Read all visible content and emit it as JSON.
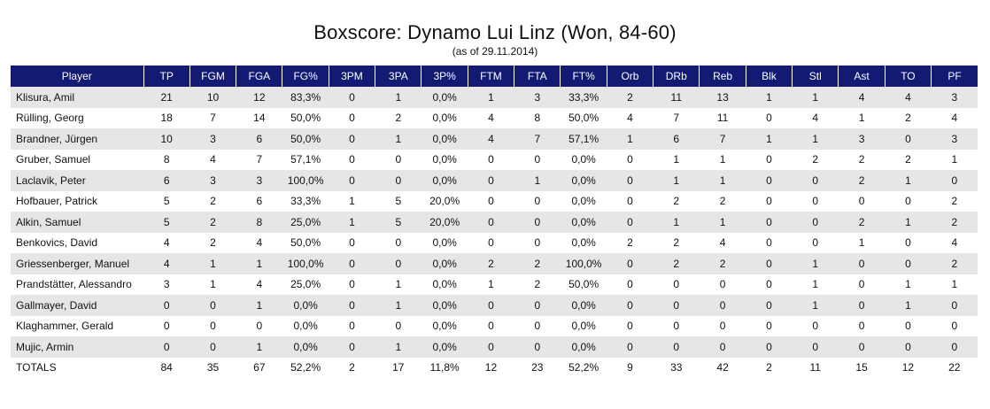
{
  "header": {
    "title": "Boxscore: Dynamo Lui Linz (Won, 84-60)",
    "subtitle": "(as of 29.11.2014)"
  },
  "table": {
    "columns": [
      "Player",
      "TP",
      "FGM",
      "FGA",
      "FG%",
      "3PM",
      "3PA",
      "3P%",
      "FTM",
      "FTA",
      "FT%",
      "Orb",
      "DRb",
      "Reb",
      "Blk",
      "Stl",
      "Ast",
      "TO",
      "PF"
    ],
    "rows": [
      [
        "Klisura, Amil",
        "21",
        "10",
        "12",
        "83,3%",
        "0",
        "1",
        "0,0%",
        "1",
        "3",
        "33,3%",
        "2",
        "11",
        "13",
        "1",
        "1",
        "4",
        "4",
        "3"
      ],
      [
        "Rülling, Georg",
        "18",
        "7",
        "14",
        "50,0%",
        "0",
        "2",
        "0,0%",
        "4",
        "8",
        "50,0%",
        "4",
        "7",
        "11",
        "0",
        "4",
        "1",
        "2",
        "4"
      ],
      [
        "Brandner, Jürgen",
        "10",
        "3",
        "6",
        "50,0%",
        "0",
        "1",
        "0,0%",
        "4",
        "7",
        "57,1%",
        "1",
        "6",
        "7",
        "1",
        "1",
        "3",
        "0",
        "3"
      ],
      [
        "Gruber, Samuel",
        "8",
        "4",
        "7",
        "57,1%",
        "0",
        "0",
        "0,0%",
        "0",
        "0",
        "0,0%",
        "0",
        "1",
        "1",
        "0",
        "2",
        "2",
        "2",
        "1"
      ],
      [
        "Laclavik, Peter",
        "6",
        "3",
        "3",
        "100,0%",
        "0",
        "0",
        "0,0%",
        "0",
        "1",
        "0,0%",
        "0",
        "1",
        "1",
        "0",
        "0",
        "2",
        "1",
        "0"
      ],
      [
        "Hofbauer, Patrick",
        "5",
        "2",
        "6",
        "33,3%",
        "1",
        "5",
        "20,0%",
        "0",
        "0",
        "0,0%",
        "0",
        "2",
        "2",
        "0",
        "0",
        "0",
        "0",
        "2"
      ],
      [
        "Alkin, Samuel",
        "5",
        "2",
        "8",
        "25,0%",
        "1",
        "5",
        "20,0%",
        "0",
        "0",
        "0,0%",
        "0",
        "1",
        "1",
        "0",
        "0",
        "2",
        "1",
        "2"
      ],
      [
        "Benkovics, David",
        "4",
        "2",
        "4",
        "50,0%",
        "0",
        "0",
        "0,0%",
        "0",
        "0",
        "0,0%",
        "2",
        "2",
        "4",
        "0",
        "0",
        "1",
        "0",
        "4"
      ],
      [
        "Griessenberger, Manuel",
        "4",
        "1",
        "1",
        "100,0%",
        "0",
        "0",
        "0,0%",
        "2",
        "2",
        "100,0%",
        "0",
        "2",
        "2",
        "0",
        "1",
        "0",
        "0",
        "2"
      ],
      [
        "Prandstätter, Alessandro",
        "3",
        "1",
        "4",
        "25,0%",
        "0",
        "1",
        "0,0%",
        "1",
        "2",
        "50,0%",
        "0",
        "0",
        "0",
        "0",
        "1",
        "0",
        "1",
        "1"
      ],
      [
        "Gallmayer, David",
        "0",
        "0",
        "1",
        "0,0%",
        "0",
        "1",
        "0,0%",
        "0",
        "0",
        "0,0%",
        "0",
        "0",
        "0",
        "0",
        "1",
        "0",
        "1",
        "0"
      ],
      [
        "Klaghammer, Gerald",
        "0",
        "0",
        "0",
        "0,0%",
        "0",
        "0",
        "0,0%",
        "0",
        "0",
        "0,0%",
        "0",
        "0",
        "0",
        "0",
        "0",
        "0",
        "0",
        "0"
      ],
      [
        "Mujic, Armin",
        "0",
        "0",
        "1",
        "0,0%",
        "0",
        "1",
        "0,0%",
        "0",
        "0",
        "0,0%",
        "0",
        "0",
        "0",
        "0",
        "0",
        "0",
        "0",
        "0"
      ]
    ],
    "totals": [
      "TOTALS",
      "84",
      "35",
      "67",
      "52,2%",
      "2",
      "17",
      "11,8%",
      "12",
      "23",
      "52,2%",
      "9",
      "33",
      "42",
      "2",
      "11",
      "15",
      "12",
      "22"
    ]
  },
  "colors": {
    "header_bg": "#131a73",
    "stripe": "#e6e6e6"
  }
}
